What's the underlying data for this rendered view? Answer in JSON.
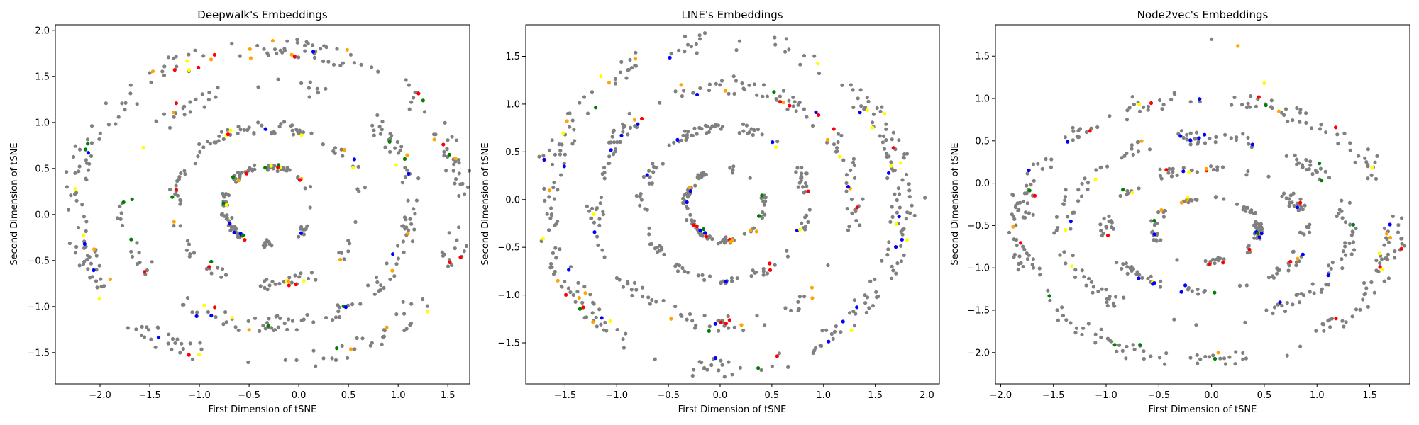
{
  "chart_data": [
    {
      "type": "scatter",
      "title": "Deepwalk's Embeddings",
      "xlabel": "First Dimension of tSNE",
      "ylabel": "Second Dimension of tSNE",
      "xlim": [
        -2.45,
        1.72
      ],
      "ylim": [
        -1.84,
        2.06
      ],
      "xticks": [
        -2.0,
        -1.5,
        -1.0,
        -0.5,
        0.0,
        0.5,
        1.0,
        1.5
      ],
      "xtick_labels": [
        "−2.0",
        "−1.5",
        "−1.0",
        "−0.5",
        "0.0",
        "0.5",
        "1.0",
        "1.5"
      ],
      "yticks": [
        -1.5,
        -1.0,
        -0.5,
        0.0,
        0.5,
        1.0,
        1.5,
        2.0
      ],
      "ytick_labels": [
        "−1.5",
        "−1.0",
        "−0.5",
        "0.0",
        "0.5",
        "1.0",
        "1.5",
        "2.0"
      ],
      "layout": "rings",
      "seed": 11,
      "center": [
        -0.3,
        0.1
      ],
      "rings": [
        {
          "rx": 1.95,
          "ry": 1.72,
          "n": 260
        },
        {
          "rx": 1.45,
          "ry": 1.3,
          "n": 170
        },
        {
          "rx": 0.95,
          "ry": 0.85,
          "n": 130
        },
        {
          "rx": 0.45,
          "ry": 0.42,
          "n": 110
        }
      ],
      "outliers": [
        [
          1.52,
          -0.52
        ],
        [
          -2.25,
          0.45
        ],
        [
          1.05,
          -0.95
        ],
        [
          1.12,
          -0.05
        ]
      ],
      "series": [
        {
          "color": "#808080",
          "fraction": 0.86
        },
        {
          "color": "#ff0000",
          "fraction": 0.03
        },
        {
          "color": "#0000ff",
          "fraction": 0.035
        },
        {
          "color": "#008000",
          "fraction": 0.025
        },
        {
          "color": "#ffa500",
          "fraction": 0.025
        },
        {
          "color": "#ffff00",
          "fraction": 0.025
        }
      ]
    },
    {
      "type": "scatter",
      "title": "LINE's Embeddings",
      "xlabel": "First Dimension of tSNE",
      "ylabel": "Second Dimension of tSNE",
      "xlim": [
        -1.88,
        2.12
      ],
      "ylim": [
        -1.93,
        1.83
      ],
      "xticks": [
        -1.5,
        -1.0,
        -0.5,
        0.0,
        0.5,
        1.0,
        1.5,
        2.0
      ],
      "xtick_labels": [
        "−1.5",
        "−1.0",
        "−0.5",
        "0.0",
        "0.5",
        "1.0",
        "1.5",
        "2.0"
      ],
      "yticks": [
        -1.5,
        -1.0,
        -0.5,
        0.0,
        0.5,
        1.0,
        1.5
      ],
      "ytick_labels": [
        "−1.5",
        "−1.0",
        "−0.5",
        "0.0",
        "0.5",
        "1.0",
        "1.5"
      ],
      "layout": "rings",
      "seed": 29,
      "center": [
        0.05,
        -0.05
      ],
      "rings": [
        {
          "rx": 1.72,
          "ry": 1.72,
          "n": 280
        },
        {
          "rx": 1.25,
          "ry": 1.25,
          "n": 190
        },
        {
          "rx": 0.8,
          "ry": 0.8,
          "n": 140
        },
        {
          "rx": 0.38,
          "ry": 0.38,
          "n": 100
        }
      ],
      "outliers": [
        [
          1.98,
          0.02
        ],
        [
          -1.75,
          0.45
        ],
        [
          1.8,
          -0.2
        ]
      ],
      "series": [
        {
          "color": "#808080",
          "fraction": 0.87
        },
        {
          "color": "#ff0000",
          "fraction": 0.025
        },
        {
          "color": "#0000ff",
          "fraction": 0.035
        },
        {
          "color": "#ffa500",
          "fraction": 0.035
        },
        {
          "color": "#ffff00",
          "fraction": 0.025
        },
        {
          "color": "#008000",
          "fraction": 0.01
        }
      ]
    },
    {
      "type": "scatter",
      "title": "Node2vec's Embeddings",
      "xlabel": "First Dimension of tSNE",
      "ylabel": "Second Dimension of tSNE",
      "xlim": [
        -2.05,
        1.88
      ],
      "ylim": [
        -2.37,
        1.87
      ],
      "xticks": [
        -2.0,
        -1.5,
        -1.0,
        -0.5,
        0.0,
        0.5,
        1.0,
        1.5
      ],
      "xtick_labels": [
        "−2.0",
        "−1.5",
        "−1.0",
        "−0.5",
        "0.0",
        "0.5",
        "1.0",
        "1.5"
      ],
      "yticks": [
        -2.0,
        -1.5,
        -1.0,
        -0.5,
        0.0,
        0.5,
        1.0,
        1.5
      ],
      "ytick_labels": [
        "−2.0",
        "−1.5",
        "−1.0",
        "−0.5",
        "0.0",
        "0.5",
        "1.0",
        "1.5"
      ],
      "layout": "rings",
      "seed": 47,
      "center": [
        -0.05,
        -0.55
      ],
      "rings": [
        {
          "rx": 1.78,
          "ry": 1.55,
          "n": 260
        },
        {
          "rx": 1.35,
          "ry": 1.1,
          "n": 170
        },
        {
          "rx": 0.95,
          "ry": 0.72,
          "n": 130
        },
        {
          "rx": 0.5,
          "ry": 0.38,
          "n": 100
        }
      ],
      "outliers": [
        [
          0.0,
          1.7
        ],
        [
          0.25,
          1.62
        ],
        [
          -0.35,
          1.05
        ],
        [
          -0.75,
          1.02
        ],
        [
          0.5,
          1.18
        ]
      ],
      "series": [
        {
          "color": "#808080",
          "fraction": 0.87
        },
        {
          "color": "#ff0000",
          "fraction": 0.03
        },
        {
          "color": "#0000ff",
          "fraction": 0.035
        },
        {
          "color": "#008000",
          "fraction": 0.025
        },
        {
          "color": "#ffa500",
          "fraction": 0.025
        },
        {
          "color": "#ffff00",
          "fraction": 0.015
        }
      ]
    }
  ]
}
